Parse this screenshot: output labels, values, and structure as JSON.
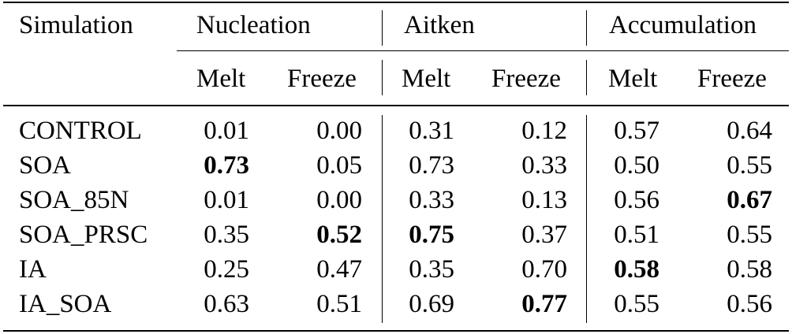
{
  "header": {
    "simulation": "Simulation",
    "groups": [
      "Nucleation",
      "Aitken",
      "Accumulation"
    ],
    "subheaders": [
      "Melt",
      "Freeze",
      "Melt",
      "Freeze",
      "Melt",
      "Freeze"
    ]
  },
  "rows": [
    {
      "name": "CONTROL",
      "values": [
        "0.01",
        "0.00",
        "0.31",
        "0.12",
        "0.57",
        "0.64"
      ],
      "bold": [
        false,
        false,
        false,
        false,
        false,
        false
      ]
    },
    {
      "name": "SOA",
      "values": [
        "0.73",
        "0.05",
        "0.73",
        "0.33",
        "0.50",
        "0.55"
      ],
      "bold": [
        true,
        false,
        false,
        false,
        false,
        false
      ]
    },
    {
      "name": "SOA_85N",
      "values": [
        "0.01",
        "0.00",
        "0.33",
        "0.13",
        "0.56",
        "0.67"
      ],
      "bold": [
        false,
        false,
        false,
        false,
        false,
        true
      ]
    },
    {
      "name": "SOA_PRSC",
      "values": [
        "0.35",
        "0.52",
        "0.75",
        "0.37",
        "0.51",
        "0.55"
      ],
      "bold": [
        false,
        true,
        true,
        false,
        false,
        false
      ]
    },
    {
      "name": "IA",
      "values": [
        "0.25",
        "0.47",
        "0.35",
        "0.70",
        "0.58",
        "0.58"
      ],
      "bold": [
        false,
        false,
        false,
        false,
        true,
        false
      ]
    },
    {
      "name": "IA_SOA",
      "values": [
        "0.63",
        "0.51",
        "0.69",
        "0.77",
        "0.55",
        "0.56"
      ],
      "bold": [
        false,
        false,
        false,
        true,
        false,
        false
      ]
    }
  ]
}
